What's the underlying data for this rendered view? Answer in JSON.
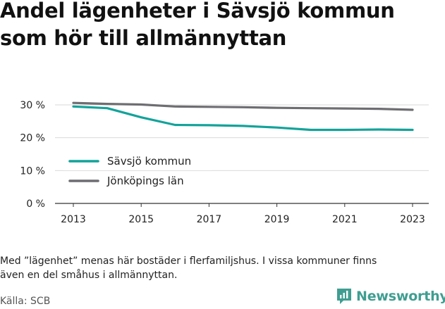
{
  "title": {
    "line1": "Andel lägenheter i Sävsjö kommun",
    "line2": "som hör till allmännyttan"
  },
  "note": {
    "line1": "Med ”lägenhet” menas här bostäder i flerfamiljshus. I vissa kommuner finns",
    "line2": "även en del småhus i allmännyttan."
  },
  "source": "Källa: SCB",
  "brand": {
    "name": "Newsworthy",
    "icon": "newsworthy-logo-icon",
    "color": "#3f9e91"
  },
  "chart_data": {
    "type": "line",
    "x": [
      2013,
      2014,
      2015,
      2016,
      2017,
      2018,
      2019,
      2020,
      2021,
      2022,
      2023
    ],
    "xticks": [
      2013,
      2015,
      2017,
      2019,
      2021,
      2023
    ],
    "xtick_labels": [
      "2013",
      "2015",
      "2017",
      "2019",
      "2021",
      "2023"
    ],
    "yticks": [
      0,
      10,
      20,
      30
    ],
    "ytick_labels": [
      "0 %",
      "10 %",
      "20 %",
      "30 %"
    ],
    "ylim": [
      0,
      30
    ],
    "grid": true,
    "legend_position": "lower-left",
    "series": [
      {
        "name": "Sävsjö kommun",
        "color": "#13a39a",
        "values": [
          29.5,
          29.0,
          26.2,
          23.9,
          23.8,
          23.6,
          23.1,
          22.4,
          22.4,
          22.5,
          22.4
        ]
      },
      {
        "name": "Jönköpings län",
        "color": "#6e6e72",
        "values": [
          30.6,
          30.3,
          30.1,
          29.5,
          29.4,
          29.3,
          29.1,
          29.0,
          28.9,
          28.8,
          28.5
        ]
      }
    ]
  }
}
